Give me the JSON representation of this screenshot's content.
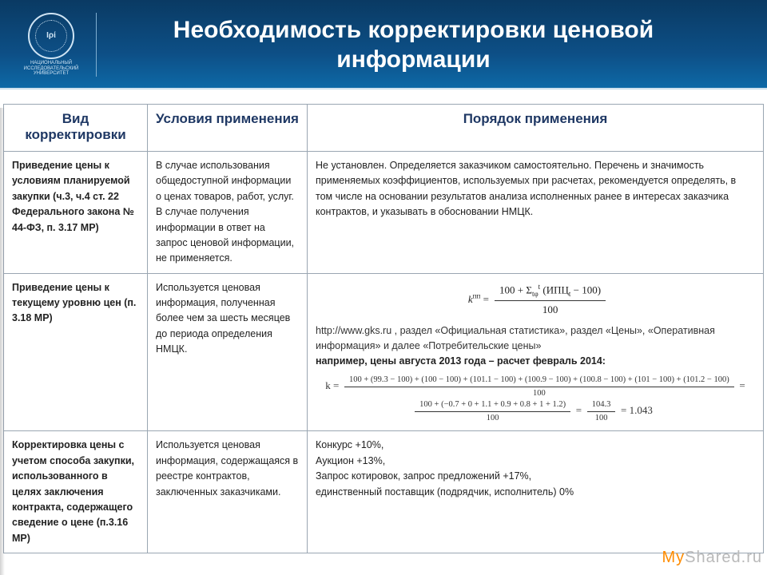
{
  "header": {
    "title": "Необходимость корректировки ценовой информации",
    "logo_caption": "НАЦИОНАЛЬНЫЙ ИССЛЕДОВАТЕЛЬСКИЙ УНИВЕРСИТЕТ",
    "logo_glyph": "Ιρί"
  },
  "table": {
    "headers": [
      "Вид корректировки",
      "Условия применения",
      "Порядок применения"
    ],
    "rows": [
      {
        "kind": "Приведение цены к условиям планируемой закупки (ч.3, ч.4 ст. 22 Федерального закона № 44-ФЗ, п. 3.17 МР)",
        "cond": "В случае использования общедоступной информации о ценах товаров, работ, услуг. В случае получения информации в ответ на запрос ценовой информации, не применяется.",
        "proc": "Не установлен. Определяется заказчиком самостоятельно. Перечень и значимость применяемых коэффициентов, используемых при расчетах, рекомендуется определять, в том числе на основании результатов анализа исполненных ранее в интересах заказчика контрактов, и указывать в обосновании НМЦК."
      },
      {
        "kind": "Приведение цены к текущему уровню цен (п. 3.18 МР)",
        "cond": "Используется ценовая информация, полученная более чем за шесть месяцев до периода определения НМЦК.",
        "formula": {
          "lhs": "k",
          "sup": "пп",
          "num": "100 + Σ (ИПЦ − 100)",
          "den": "100",
          "sigma_sub": "tφ",
          "sigma_sup": "t",
          "term": "(ИПЦt − 100)"
        },
        "rich_html": "http://www.gks.ru , раздел «Официальная статистика», раздел «Цены», «Оперативная информация» и далее «Потребительские цены»",
        "rich_bold": "например, цены августа 2013 года – расчет февраль 2014:",
        "calc": {
          "num1": "100 + (99.3 − 100) + (100 − 100) + (101.1 − 100) + (100.9 − 100) + (100.8 − 100) + (101 − 100) + (101.2 − 100)",
          "num2": "100 + (−0.7 + 0 + 1.1 + 0.9 + 0.8 + 1 + 1.2)",
          "den": "100",
          "ratio_num": "104.3",
          "ratio_den": "100",
          "result": "= 1.043"
        }
      },
      {
        "kind": "Корректировка цены с учетом способа закупки, использованного в целях заключения контракта, содержащего сведение о цене (п.3.16 МР)",
        "cond": "Используется ценовая информация, содержащаяся в реестре контрактов, заключенных заказчиками.",
        "proc": "Конкурс +10%,\nАукцион +13%,\nЗапрос котировок, запрос предложений +17%,\nединственный поставщик (подрядчик, исполнитель) 0%"
      }
    ]
  },
  "watermark": {
    "left": "My",
    "right": "Shared.ru"
  },
  "colors": {
    "header_grad_top": "#0a3a63",
    "header_grad_mid": "#0d4f86",
    "header_grad_bot": "#0d6aa8",
    "th_text": "#1f3864",
    "border": "#9aa6b2",
    "watermark": "#b9b9b9",
    "watermark_accent": "#ff8c00"
  }
}
